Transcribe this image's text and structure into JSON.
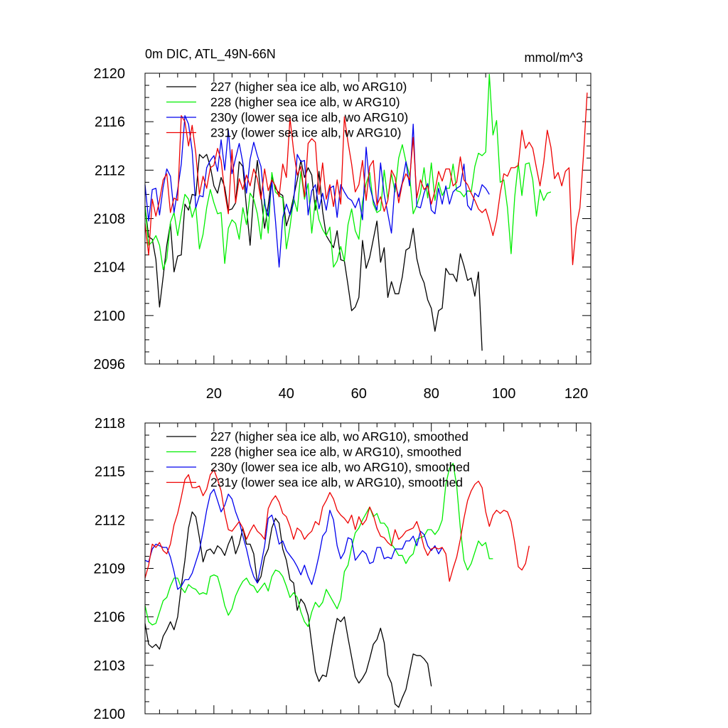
{
  "chart_data": [
    {
      "type": "line",
      "title": "0m DIC, ATL_49N-66N",
      "units": "mmol/m^3",
      "xlabel": "",
      "ylabel": "",
      "xlim": [
        1,
        124
      ],
      "ylim": [
        2096,
        2120
      ],
      "xticks": [
        20,
        40,
        60,
        80,
        100,
        120
      ],
      "yticks": [
        2096,
        2100,
        2104,
        2108,
        2112,
        2116,
        2120
      ],
      "grid": false,
      "legend_position": "top-left",
      "series": [
        {
          "name": "227 (higher sea ice alb, wo ARG10)",
          "color": "#000000",
          "values": [
            2109,
            2106.5,
            2106.3,
            2104.6,
            2100.7,
            2103.2,
            2105.8,
            2107.6,
            2103.6,
            2104.9,
            2105,
            2109.2,
            2108.7,
            2110,
            2109.9,
            2113.3,
            2113,
            2113.3,
            2112.3,
            2110.7,
            2110.1,
            2111.4,
            2110.6,
            2108.7,
            2108.8,
            2109.3,
            2112.7,
            2112.3,
            2108.9,
            2105.8,
            2110.1,
            2112.8,
            2109.9,
            2107.2,
            2109.1,
            2111.5,
            2110.5,
            2110.1,
            2109.9,
            2107.4,
            2108.4,
            2109.8,
            2111.2,
            2112.8,
            2111.4,
            2112.2,
            2111.6,
            2108.7,
            2111.9,
            2108.6,
            2106.6,
            2106.1,
            2105.6,
            2107,
            2104.6,
            2104.5,
            2102.5,
            2100.4,
            2100.7,
            2101.5,
            2106.2,
            2103.9,
            2104.8,
            2106.3,
            2107.8,
            2104.4,
            2105.6,
            2101.5,
            2102.8,
            2101.8,
            2101.8,
            2103.2,
            2105.4,
            2105.6,
            2107.2,
            2104.7,
            2103.4,
            2102.7,
            2101.3,
            2100.6,
            2098.7,
            2100.4,
            2100.6,
            2103.9,
            2103.4,
            2103.4,
            2102.8,
            2105.1,
            2104.1,
            2102.9,
            2103.1,
            2101.6,
            2103.6,
            2097.1
          ]
        },
        {
          "name": "228 (higher sea ice alb, w ARG10)",
          "color": "#00ee00",
          "values": [
            2109,
            2105.8,
            2106.1,
            2106.6,
            2105.8,
            2103.8,
            2104.7,
            2107.7,
            2108.5,
            2106.6,
            2108.4,
            2110,
            2109.6,
            2108.1,
            2109,
            2105.5,
            2106.7,
            2108.9,
            2110.4,
            2109.3,
            2108.4,
            2108.5,
            2104.3,
            2107.2,
            2107.9,
            2107.6,
            2106.3,
            2108.9,
            2107.5,
            2110.1,
            2109.6,
            2108.4,
            2106.3,
            2109.6,
            2106.8,
            2111.8,
            2110.2,
            2109.9,
            2109.7,
            2105.5,
            2107.3,
            2109.7,
            2108.6,
            2111.9,
            2109.6,
            2110.9,
            2106.8,
            2109.5,
            2107.9,
            2107.1,
            2106.6,
            2107.3,
            2104,
            2104.5,
            2105.7,
            2104.5,
            2107.5,
            2108.8,
            2107,
            2106.3,
            2109.4,
            2110.9,
            2111.8,
            2109.2,
            2108.5,
            2108.7,
            2112,
            2109.6,
            2111.7,
            2110.2,
            2113,
            2114.1,
            2112.7,
            2111.6,
            2108.4,
            2109.1,
            2110.1,
            2112.2,
            2109.7,
            2112.6,
            2109.5,
            2111,
            2109.9,
            2110.5,
            2110.5,
            2112.5,
            2110.3,
            2110.2,
            2109.8,
            2110.3,
            2110.2,
            2112.3,
            2113.4,
            2113.2,
            2113.5,
            2119.9,
            2114.9,
            2116.1,
            2111,
            2111.2,
            2108.9,
            2105.1,
            2109.8,
            2112.6,
            2109.9,
            2112.5,
            2112.6,
            2111.2,
            2108.2,
            2110.4,
            2109.5,
            2110.1,
            2110.2
          ]
        },
        {
          "name": "230y (lower sea ice alb, wo ARG10)",
          "color": "#0000ee",
          "values": [
            2110.8,
            2107.8,
            2110.4,
            2110.5,
            2108.3,
            2110.6,
            2112.1,
            2111.5,
            2108.5,
            2110.4,
            2112.5,
            2116.5,
            2115.8,
            2113.6,
            2108.9,
            2109.9,
            2109.8,
            2112.2,
            2112.8,
            2113.2,
            2111.9,
            2114.5,
            2112,
            2115.3,
            2111.7,
            2113,
            2114.2,
            2112.6,
            2110.1,
            2112.9,
            2114.3,
            2113.2,
            2112.3,
            2109.2,
            2108.2,
            2111.1,
            2107.8,
            2104,
            2108.1,
            2109.2,
            2108.3,
            2109.3,
            2113.3,
            2112.7,
            2112.8,
            2108.3,
            2110.3,
            2110.8,
            2108.8,
            2110.1,
            2108.7,
            2110.5,
            2110.7,
            2108.1,
            2110.8,
            2110.2,
            2109.7,
            2109.5,
            2108.9,
            2109.7,
            2107.9,
            2113.9,
            2110.7,
            2109.5,
            2108.7,
            2112.6,
            2110,
            2108.4,
            2106.8,
            2110.9,
            2109.8,
            2111,
            2112.7,
            2110.7,
            2115.8,
            2109,
            2108.9,
            2110.1,
            2110.9,
            2108.7,
            2108.4,
            2110.5,
            2109.2,
            2110.7,
            2109.2,
            2110.2,
            2110.5,
            2110.7,
            2112.5,
            2109.1,
            2108.7,
            2110.1,
            2109.8,
            2110.8,
            2110.5,
            2110
          ]
        },
        {
          "name": "231y (lower sea ice alb, w ARG10)",
          "color": "#ee0000",
          "values": [
            2107.6,
            2105,
            2109.6,
            2108.2,
            2109.5,
            2111.2,
            2111.7,
            2108.5,
            2109.7,
            2109.5,
            2116.5,
            2116,
            2114,
            2115.7,
            2113.4,
            2110,
            2111.5,
            2110.5,
            2112.2,
            2112.4,
            2113.8,
            2112.8,
            2110.2,
            2108.4,
            2113.7,
            2109.3,
            2111.3,
            2110.4,
            2111.6,
            2110.7,
            2112.1,
            2111.3,
            2109.6,
            2112.1,
            2110.3,
            2111.2,
            2110.7,
            2109.8,
            2112.5,
            2111.4,
            2116.3,
            2113.6,
            2111.6,
            2112.3,
            2109.8,
            2114.2,
            2114.6,
            2114.3,
            2110,
            2112.6,
            2109.6,
            2110.8,
            2109,
            2111.2,
            2109.2,
            2116.4,
            2114.3,
            2112.5,
            2110.2,
            2110.8,
            2112.8,
            2109.5,
            2112.3,
            2112.8,
            2109.1,
            2109.8,
            2108.6,
            2109.5,
            2112,
            2111.4,
            2109.3,
            2110.9,
            2111.7,
            2111.2,
            2114.7,
            2109.7,
            2111.2,
            2110.4,
            2110.7,
            2109.2,
            2110.3,
            2111.9,
            2111.1,
            2112.1,
            2112.1,
            2110.7,
            2111,
            2113.1,
            2111.2,
            2110.8,
            2110.1,
            2109.5,
            2108.8,
            2108.5,
            2108.8,
            2107.8,
            2106.6,
            2107.9,
            2110.1,
            2111.7,
            2111.5,
            2112.2,
            2112.2,
            2112.4,
            2115.3,
            2113.8,
            2114.3,
            2113.8,
            2112.2,
            2110.7,
            2112.6,
            2115.3,
            2113.9,
            2111.3,
            2111.8,
            2110.7,
            2111.9,
            2112.2,
            2104.2,
            2107.4,
            2108.9,
            2113.3,
            2118.4
          ]
        }
      ]
    },
    {
      "type": "line",
      "title": "",
      "xlim": [
        1,
        124
      ],
      "ylim": [
        2100,
        2118
      ],
      "xticks": [
        20,
        40,
        60,
        80,
        100,
        120
      ],
      "yticks": [
        2100,
        2103,
        2106,
        2109,
        2112,
        2115,
        2118
      ],
      "grid": false,
      "legend_position": "top-left",
      "series": [
        {
          "name": "227 (higher sea ice alb, wo ARG10), smoothed",
          "color": "#000000",
          "values": [
            2105.6,
            2104.3,
            2104.1,
            2104.3,
            2104,
            2104.8,
            2105.2,
            2105.7,
            2105.2,
            2106,
            2107.9,
            2109.5,
            2111.5,
            2112.5,
            2112.2,
            2110.9,
            2109.4,
            2110.1,
            2110.2,
            2109.9,
            2110.4,
            2110.2,
            2109.8,
            2110.5,
            2111,
            2109.9,
            2110.5,
            2111.5,
            2110.5,
            2110.5,
            2109.9,
            2108.1,
            2108.5,
            2109.7,
            2110.2,
            2111.5,
            2112.1,
            2111.8,
            2110.2,
            2109.5,
            2108.3,
            2108.1,
            2106.4,
            2107.1,
            2106.8,
            2106.1,
            2104.3,
            2102.6,
            2102,
            2102.4,
            2102.3,
            2103.5,
            2104.8,
            2105.9,
            2105.7,
            2106,
            2104.7,
            2103.5,
            2102.3,
            2101.9,
            2102.2,
            2102.6,
            2103.4,
            2104.3,
            2104.6,
            2105.3,
            2104.4,
            2102.4,
            2101.9,
            2100.6,
            2100.4,
            2101,
            2101.5,
            2102.6,
            2103.7,
            2103.6,
            2103.6,
            2103.4,
            2103.1,
            2101.7
          ]
        },
        {
          "name": "228 (higher sea ice alb, w ARG10), smoothed",
          "color": "#00ee00",
          "values": [
            2106.7,
            2105.7,
            2105.5,
            2105.6,
            2106.3,
            2107,
            2107.2,
            2107.9,
            2108.4,
            2108.4,
            2107.8,
            2107.5,
            2108,
            2107.8,
            2107.7,
            2107.4,
            2107.5,
            2107.4,
            2108.5,
            2108.6,
            2108.5,
            2107.7,
            2106.7,
            2106.1,
            2106.5,
            2107.3,
            2107.8,
            2108.2,
            2108.4,
            2108,
            2107.9,
            2107.5,
            2107.8,
            2108.1,
            2107.6,
            2108.5,
            2108.9,
            2108.8,
            2108.5,
            2107.9,
            2107.2,
            2107.5,
            2107.2,
            2106.3,
            2105.7,
            2105.4,
            2106.3,
            2106.9,
            2106.6,
            2106.9,
            2107.7,
            2107.3,
            2106.9,
            2106.5,
            2107.1,
            2108.8,
            2109.2,
            2110.3,
            2111.2,
            2111.5,
            2112,
            2112.4,
            2112.8,
            2112.2,
            2112.4,
            2111.8,
            2111.8,
            2111.5,
            2110.5,
            2110.2,
            2109.8,
            2109.8,
            2109.3,
            2109.7,
            2109.9,
            2110.8,
            2110.9,
            2111,
            2111.4,
            2111.4,
            2111.1,
            2111.4,
            2112,
            2114.2,
            2115.2,
            2115.5,
            2114.1,
            2111.5,
            2109.5,
            2108.9,
            2109.3,
            2110,
            2110.7,
            2110.4,
            2110.6,
            2109.6,
            2109.6
          ]
        },
        {
          "name": "230y (lower sea ice alb, wo ARG10), smoothed",
          "color": "#0000ee",
          "values": [
            2109.5,
            2109.4,
            2110.2,
            2110.5,
            2110.4,
            2110.3,
            2110.3,
            2109.7,
            2108.8,
            2107.7,
            2107.9,
            2108.3,
            2108.3,
            2108.7,
            2109.4,
            2110.1,
            2111.3,
            2112.6,
            2113.6,
            2113.9,
            2113.2,
            2112.5,
            2112.9,
            2113.6,
            2113.3,
            2112.5,
            2111.9,
            2111,
            2110.2,
            2109.2,
            2108.5,
            2108.1,
            2109.2,
            2110.4,
            2112.1,
            2112.3,
            2111.5,
            2110.5,
            2110.7,
            2110.1,
            2109.8,
            2109.5,
            2109.1,
            2108.6,
            2109.2,
            2108.5,
            2108,
            2108.8,
            2109.8,
            2111,
            2111.3,
            2112.6,
            2112,
            2110.4,
            2109.6,
            2110,
            2110.9,
            2110.8,
            2109.5,
            2109.8,
            2110.1,
            2109.9,
            2109.3,
            2109.4,
            2110.3,
            2110.3,
            2109.6,
            2109.7,
            2109.6,
            2110.2,
            2110.2,
            2110.2,
            2110.7,
            2110.7,
            2111,
            2110.4,
            2111.3,
            2111.1,
            2110.4,
            2110.1,
            2110.4,
            2109.9,
            2110.3
          ]
        },
        {
          "name": "231y (lower sea ice alb, w ARG10), smoothed",
          "color": "#ee0000",
          "values": [
            2108.4,
            2109.2,
            2110.5,
            2110.3,
            2110.6,
            2110.1,
            2109.9,
            2110.5,
            2111.7,
            2112.4,
            2113.4,
            2114.5,
            2114.8,
            2114,
            2114,
            2114.1,
            2113.5,
            2113.9,
            2114.8,
            2115.1,
            2114.5,
            2113.8,
            2112.4,
            2111.4,
            2111.3,
            2111.6,
            2111.9,
            2111.5,
            2110.8,
            2111.3,
            2111.7,
            2111.3,
            2111.1,
            2110.8,
            2112.7,
            2113.2,
            2113.5,
            2113.1,
            2112.4,
            2112.2,
            2111.6,
            2110.8,
            2111.5,
            2111.3,
            2110.8,
            2111.1,
            2111.3,
            2111.9,
            2111.7,
            2112.8,
            2113.2,
            2113.7,
            2113.3,
            2112.6,
            2112.3,
            2112.1,
            2111.8,
            2112.3,
            2111.4,
            2112.2,
            2111.7,
            2112,
            2112.8,
            2112.3,
            2111.5,
            2111,
            2110.9,
            2110.6,
            2110.4,
            2111.4,
            2110.8,
            2111,
            2111.3,
            2111.4,
            2111.5,
            2111.9,
            2111.2,
            2110.3,
            2109.8,
            2110.2,
            2110.3,
            2110.2,
            2110.3,
            2109.9,
            2108.2,
            2109,
            2109.7,
            2110.8,
            2112.1,
            2113.2,
            2113.8,
            2114.2,
            2114.4,
            2114,
            2112.5,
            2111.6,
            2112.3,
            2112.6,
            2112.4,
            2112.6,
            2112.5,
            2111.9,
            2110.6,
            2109.1,
            2108.9,
            2109.3,
            2110.4
          ]
        }
      ]
    }
  ]
}
